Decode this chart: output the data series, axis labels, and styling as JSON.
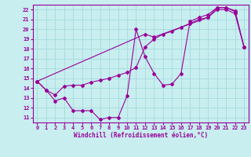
{
  "xlabel": "Windchill (Refroidissement éolien,°C)",
  "xlim": [
    -0.5,
    23.5
  ],
  "ylim": [
    10.5,
    22.5
  ],
  "xticks": [
    0,
    1,
    2,
    3,
    4,
    5,
    6,
    7,
    8,
    9,
    10,
    11,
    12,
    13,
    14,
    15,
    16,
    17,
    18,
    19,
    20,
    21,
    22,
    23
  ],
  "yticks": [
    11,
    12,
    13,
    14,
    15,
    16,
    17,
    18,
    19,
    20,
    21,
    22
  ],
  "bg_color": "#c8eef0",
  "grid_color": "#aadddf",
  "line_color": "#990099",
  "series1_x": [
    0,
    1,
    2,
    3,
    4,
    5,
    6,
    7,
    8,
    9,
    10,
    11,
    12,
    13,
    14,
    15,
    16,
    17,
    18,
    19,
    20,
    21,
    22,
    23
  ],
  "series1_y": [
    14.7,
    13.8,
    12.7,
    13.0,
    11.7,
    11.7,
    11.7,
    10.8,
    11.0,
    11.0,
    13.2,
    20.0,
    17.2,
    15.5,
    14.3,
    14.4,
    15.5,
    20.8,
    21.2,
    21.5,
    22.2,
    22.2,
    21.8,
    18.2
  ],
  "series2_x": [
    0,
    1,
    2,
    3,
    4,
    5,
    6,
    7,
    8,
    9,
    10,
    11,
    12,
    13,
    14,
    15,
    16,
    17,
    18,
    19,
    20,
    21,
    22,
    23
  ],
  "series2_y": [
    14.7,
    13.8,
    13.3,
    14.2,
    14.3,
    14.3,
    14.6,
    14.8,
    15.0,
    15.3,
    15.6,
    16.1,
    18.2,
    19.0,
    19.5,
    19.8,
    20.2,
    20.6,
    21.0,
    21.2,
    22.0,
    22.0,
    21.6,
    18.2
  ],
  "series3_x": [
    0,
    12,
    13,
    19,
    20,
    21,
    22,
    23
  ],
  "series3_y": [
    14.7,
    19.5,
    19.2,
    21.2,
    22.2,
    22.2,
    21.9,
    18.2
  ],
  "label_fontsize": 5.5,
  "tick_fontsize": 5.0
}
